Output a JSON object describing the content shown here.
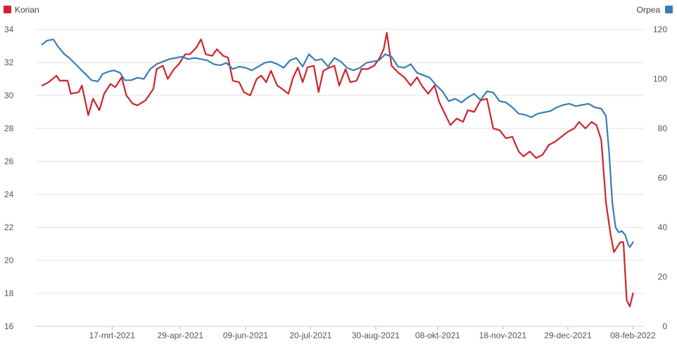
{
  "chart_data": {
    "type": "line",
    "legend": {
      "placement": "top-left / top-right"
    },
    "grid": true,
    "x_axis": {
      "range": [
        "2021-02-01",
        "2022-02-10"
      ],
      "tick_labels": [
        "17-mrt-2021",
        "29-apr-2021",
        "09-jun-2021",
        "20-jul-2021",
        "30-aug-2021",
        "08-okt-2021",
        "18-nov-2021",
        "29-dec-2021",
        "08-feb-2022"
      ],
      "tick_dates": [
        "2021-03-17",
        "2021-04-29",
        "2021-06-09",
        "2021-07-20",
        "2021-08-30",
        "2021-10-08",
        "2021-11-18",
        "2021-12-29",
        "2022-02-08"
      ]
    },
    "y_left": {
      "ticks": [
        16,
        18,
        20,
        22,
        24,
        26,
        28,
        30,
        32,
        34
      ],
      "ylim": [
        16,
        34
      ]
    },
    "y_right": {
      "ticks": [
        0,
        20,
        40,
        60,
        80,
        100,
        120
      ],
      "ylim": [
        0,
        120
      ]
    },
    "series": [
      {
        "name": "Korian",
        "axis": "left",
        "color": "#d0232b",
        "points": [
          [
            "2021-02-01",
            30.6
          ],
          [
            "2021-02-05",
            30.8
          ],
          [
            "2021-02-10",
            31.2
          ],
          [
            "2021-02-12",
            30.9
          ],
          [
            "2021-02-17",
            30.9
          ],
          [
            "2021-02-19",
            30.1
          ],
          [
            "2021-02-24",
            30.2
          ],
          [
            "2021-02-26",
            30.6
          ],
          [
            "2021-03-02",
            28.8
          ],
          [
            "2021-03-05",
            29.8
          ],
          [
            "2021-03-09",
            29.1
          ],
          [
            "2021-03-12",
            30.1
          ],
          [
            "2021-03-16",
            30.7
          ],
          [
            "2021-03-19",
            30.5
          ],
          [
            "2021-03-23",
            31.1
          ],
          [
            "2021-03-26",
            30.0
          ],
          [
            "2021-03-30",
            29.5
          ],
          [
            "2021-04-02",
            29.4
          ],
          [
            "2021-04-07",
            29.7
          ],
          [
            "2021-04-12",
            30.4
          ],
          [
            "2021-04-14",
            31.6
          ],
          [
            "2021-04-18",
            31.8
          ],
          [
            "2021-04-21",
            31.0
          ],
          [
            "2021-04-25",
            31.6
          ],
          [
            "2021-04-28",
            31.9
          ],
          [
            "2021-05-02",
            32.5
          ],
          [
            "2021-05-05",
            32.5
          ],
          [
            "2021-05-09",
            32.9
          ],
          [
            "2021-05-12",
            33.4
          ],
          [
            "2021-05-15",
            32.5
          ],
          [
            "2021-05-19",
            32.4
          ],
          [
            "2021-05-22",
            32.8
          ],
          [
            "2021-05-26",
            32.4
          ],
          [
            "2021-05-29",
            32.3
          ],
          [
            "2021-06-01",
            30.9
          ],
          [
            "2021-06-05",
            30.8
          ],
          [
            "2021-06-08",
            30.2
          ],
          [
            "2021-06-12",
            30.0
          ],
          [
            "2021-06-16",
            31.0
          ],
          [
            "2021-06-19",
            31.2
          ],
          [
            "2021-06-22",
            30.8
          ],
          [
            "2021-06-25",
            31.5
          ],
          [
            "2021-06-29",
            30.6
          ],
          [
            "2021-07-02",
            30.4
          ],
          [
            "2021-07-06",
            30.1
          ],
          [
            "2021-07-09",
            31.1
          ],
          [
            "2021-07-12",
            31.7
          ],
          [
            "2021-07-15",
            30.8
          ],
          [
            "2021-07-18",
            31.7
          ],
          [
            "2021-07-22",
            31.8
          ],
          [
            "2021-07-25",
            30.2
          ],
          [
            "2021-07-28",
            31.5
          ],
          [
            "2021-08-01",
            31.7
          ],
          [
            "2021-08-04",
            31.8
          ],
          [
            "2021-08-07",
            30.6
          ],
          [
            "2021-08-11",
            31.6
          ],
          [
            "2021-08-14",
            30.8
          ],
          [
            "2021-08-18",
            30.9
          ],
          [
            "2021-08-21",
            31.6
          ],
          [
            "2021-08-25",
            31.6
          ],
          [
            "2021-08-29",
            31.8
          ],
          [
            "2021-09-01",
            32.2
          ],
          [
            "2021-09-04",
            32.8
          ],
          [
            "2021-09-06",
            33.8
          ],
          [
            "2021-09-09",
            31.8
          ],
          [
            "2021-09-13",
            31.4
          ],
          [
            "2021-09-17",
            31.1
          ],
          [
            "2021-09-21",
            30.6
          ],
          [
            "2021-09-25",
            31.1
          ],
          [
            "2021-09-28",
            30.6
          ],
          [
            "2021-10-02",
            30.1
          ],
          [
            "2021-10-06",
            30.6
          ],
          [
            "2021-10-09",
            29.6
          ],
          [
            "2021-10-12",
            29.0
          ],
          [
            "2021-10-16",
            28.2
          ],
          [
            "2021-10-20",
            28.6
          ],
          [
            "2021-10-24",
            28.4
          ],
          [
            "2021-10-27",
            29.1
          ],
          [
            "2021-10-31",
            29.0
          ],
          [
            "2021-11-04",
            29.7
          ],
          [
            "2021-11-08",
            29.8
          ],
          [
            "2021-11-12",
            28.0
          ],
          [
            "2021-11-16",
            27.9
          ],
          [
            "2021-11-20",
            27.4
          ],
          [
            "2021-11-24",
            27.5
          ],
          [
            "2021-11-28",
            26.6
          ],
          [
            "2021-12-01",
            26.3
          ],
          [
            "2021-12-05",
            26.6
          ],
          [
            "2021-12-09",
            26.2
          ],
          [
            "2021-12-13",
            26.4
          ],
          [
            "2021-12-17",
            27.0
          ],
          [
            "2021-12-21",
            27.2
          ],
          [
            "2021-12-25",
            27.5
          ],
          [
            "2021-12-29",
            27.8
          ],
          [
            "2022-01-02",
            28.0
          ],
          [
            "2022-01-05",
            28.4
          ],
          [
            "2022-01-09",
            28.0
          ],
          [
            "2022-01-13",
            28.4
          ],
          [
            "2022-01-16",
            28.2
          ],
          [
            "2022-01-19",
            27.3
          ],
          [
            "2022-01-22",
            23.5
          ],
          [
            "2022-01-25",
            21.5
          ],
          [
            "2022-01-27",
            20.5
          ],
          [
            "2022-01-29",
            20.8
          ],
          [
            "2022-01-31",
            21.1
          ],
          [
            "2022-02-02",
            21.1
          ],
          [
            "2022-02-04",
            17.6
          ],
          [
            "2022-02-06",
            17.2
          ],
          [
            "2022-02-08",
            18.0
          ]
        ]
      },
      {
        "name": "Orpea",
        "axis": "right",
        "color": "#3a7db3",
        "points": [
          [
            "2021-02-01",
            114.0
          ],
          [
            "2021-02-04",
            115.5
          ],
          [
            "2021-02-08",
            116.0
          ],
          [
            "2021-02-11",
            113.0
          ],
          [
            "2021-02-15",
            110.0
          ],
          [
            "2021-02-18",
            108.5
          ],
          [
            "2021-02-22",
            106.0
          ],
          [
            "2021-02-25",
            104.0
          ],
          [
            "2021-03-01",
            101.5
          ],
          [
            "2021-03-04",
            99.5
          ],
          [
            "2021-03-08",
            99.0
          ],
          [
            "2021-03-11",
            102.0
          ],
          [
            "2021-03-15",
            103.0
          ],
          [
            "2021-03-18",
            103.5
          ],
          [
            "2021-03-22",
            102.5
          ],
          [
            "2021-03-25",
            99.5
          ],
          [
            "2021-03-29",
            99.5
          ],
          [
            "2021-04-02",
            100.5
          ],
          [
            "2021-04-06",
            100.0
          ],
          [
            "2021-04-10",
            104.0
          ],
          [
            "2021-04-14",
            106.0
          ],
          [
            "2021-04-18",
            107.0
          ],
          [
            "2021-04-22",
            108.0
          ],
          [
            "2021-04-26",
            108.5
          ],
          [
            "2021-04-30",
            109.0
          ],
          [
            "2021-05-04",
            108.0
          ],
          [
            "2021-05-08",
            108.5
          ],
          [
            "2021-05-12",
            108.0
          ],
          [
            "2021-05-16",
            107.5
          ],
          [
            "2021-05-20",
            106.0
          ],
          [
            "2021-05-24",
            105.5
          ],
          [
            "2021-05-28",
            106.5
          ],
          [
            "2021-06-01",
            104.0
          ],
          [
            "2021-06-05",
            105.0
          ],
          [
            "2021-06-09",
            104.5
          ],
          [
            "2021-06-13",
            103.5
          ],
          [
            "2021-06-17",
            105.0
          ],
          [
            "2021-06-21",
            106.5
          ],
          [
            "2021-06-25",
            107.0
          ],
          [
            "2021-06-29",
            106.0
          ],
          [
            "2021-07-03",
            104.5
          ],
          [
            "2021-07-07",
            107.5
          ],
          [
            "2021-07-11",
            108.5
          ],
          [
            "2021-07-15",
            105.0
          ],
          [
            "2021-07-19",
            110.0
          ],
          [
            "2021-07-23",
            107.5
          ],
          [
            "2021-07-27",
            108.0
          ],
          [
            "2021-07-31",
            105.0
          ],
          [
            "2021-08-04",
            108.5
          ],
          [
            "2021-08-08",
            107.0
          ],
          [
            "2021-08-12",
            104.5
          ],
          [
            "2021-08-16",
            103.5
          ],
          [
            "2021-08-20",
            104.5
          ],
          [
            "2021-08-24",
            106.5
          ],
          [
            "2021-08-28",
            107.0
          ],
          [
            "2021-09-01",
            107.5
          ],
          [
            "2021-09-05",
            110.0
          ],
          [
            "2021-09-09",
            109.0
          ],
          [
            "2021-09-13",
            105.0
          ],
          [
            "2021-09-17",
            104.5
          ],
          [
            "2021-09-21",
            106.0
          ],
          [
            "2021-09-25",
            102.5
          ],
          [
            "2021-09-29",
            101.5
          ],
          [
            "2021-10-03",
            100.5
          ],
          [
            "2021-10-07",
            97.5
          ],
          [
            "2021-10-11",
            95.0
          ],
          [
            "2021-10-15",
            91.0
          ],
          [
            "2021-10-19",
            92.0
          ],
          [
            "2021-10-23",
            90.5
          ],
          [
            "2021-10-27",
            92.5
          ],
          [
            "2021-10-31",
            94.0
          ],
          [
            "2021-11-04",
            91.5
          ],
          [
            "2021-11-08",
            95.0
          ],
          [
            "2021-11-12",
            94.5
          ],
          [
            "2021-11-16",
            91.0
          ],
          [
            "2021-11-20",
            90.5
          ],
          [
            "2021-11-24",
            88.5
          ],
          [
            "2021-11-28",
            86.0
          ],
          [
            "2021-12-02",
            85.5
          ],
          [
            "2021-12-06",
            84.5
          ],
          [
            "2021-12-10",
            86.0
          ],
          [
            "2021-12-14",
            86.5
          ],
          [
            "2021-12-18",
            87.0
          ],
          [
            "2021-12-22",
            88.5
          ],
          [
            "2021-12-26",
            89.5
          ],
          [
            "2021-12-30",
            90.0
          ],
          [
            "2022-01-03",
            89.0
          ],
          [
            "2022-01-07",
            89.5
          ],
          [
            "2022-01-11",
            90.0
          ],
          [
            "2022-01-15",
            88.5
          ],
          [
            "2022-01-19",
            88.0
          ],
          [
            "2022-01-22",
            85.0
          ],
          [
            "2022-01-24",
            70.0
          ],
          [
            "2022-01-26",
            50.0
          ],
          [
            "2022-01-28",
            40.0
          ],
          [
            "2022-01-30",
            38.0
          ],
          [
            "2022-02-01",
            38.5
          ],
          [
            "2022-02-03",
            37.0
          ],
          [
            "2022-02-05",
            33.0
          ],
          [
            "2022-02-06",
            32.0
          ],
          [
            "2022-02-08",
            34.0
          ]
        ]
      }
    ]
  }
}
